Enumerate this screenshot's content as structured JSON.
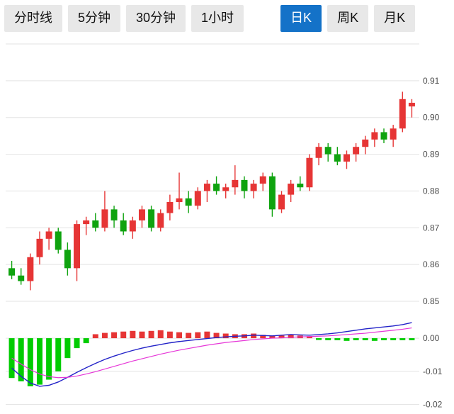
{
  "tabs": [
    {
      "name": "tab-time-line",
      "label": "分时线",
      "active": false
    },
    {
      "name": "tab-5min",
      "label": "5分钟",
      "active": false
    },
    {
      "name": "tab-30min",
      "label": "30分钟",
      "active": false
    },
    {
      "name": "tab-1hour",
      "label": "1小时",
      "active": false
    },
    {
      "name": "tab-daily-k",
      "label": "日K",
      "active": true
    },
    {
      "name": "tab-weekly-k",
      "label": "周K",
      "active": false
    },
    {
      "name": "tab-monthly-k",
      "label": "月K",
      "active": false
    }
  ],
  "colors": {
    "active_tab_bg": "#1472c8",
    "active_tab_text": "#ffffff",
    "tab_bg": "#e8e8e8",
    "tab_text": "#111111",
    "up": "#e63535",
    "down": "#0fa30f",
    "hist_up": "#e63535",
    "hist_down": "#00cc00",
    "dif_line": "#2323c8",
    "dea_line": "#e637d8",
    "grid": "#e3e3e3",
    "axis_text": "#4d4d4d"
  },
  "chart_data": [
    {
      "type": "candlestick",
      "title": "",
      "xlabel": "",
      "ylabel": "",
      "legend": false,
      "grid": true,
      "ylim": [
        0.85,
        0.92
      ],
      "grid_values": [
        0.92,
        0.91,
        0.9,
        0.89,
        0.88,
        0.87,
        0.86,
        0.85
      ],
      "y_ticks": [
        {
          "value": 0.91,
          "label": "0.91"
        },
        {
          "value": 0.9,
          "label": "0.90"
        },
        {
          "value": 0.89,
          "label": "0.89"
        },
        {
          "value": 0.88,
          "label": "0.88"
        },
        {
          "value": 0.87,
          "label": "0.87"
        },
        {
          "value": 0.86,
          "label": "0.86"
        },
        {
          "value": 0.85,
          "label": "0.85"
        }
      ],
      "candle_format": [
        "open",
        "high",
        "low",
        "close"
      ],
      "candles": [
        [
          0.859,
          0.861,
          0.856,
          0.857
        ],
        [
          0.857,
          0.859,
          0.8545,
          0.8555
        ],
        [
          0.8555,
          0.863,
          0.853,
          0.862
        ],
        [
          0.862,
          0.869,
          0.86,
          0.867
        ],
        [
          0.867,
          0.87,
          0.864,
          0.869
        ],
        [
          0.869,
          0.87,
          0.863,
          0.864
        ],
        [
          0.864,
          0.866,
          0.857,
          0.859
        ],
        [
          0.859,
          0.872,
          0.8555,
          0.871
        ],
        [
          0.871,
          0.873,
          0.868,
          0.872
        ],
        [
          0.872,
          0.874,
          0.869,
          0.87
        ],
        [
          0.87,
          0.88,
          0.869,
          0.875
        ],
        [
          0.875,
          0.876,
          0.87,
          0.872
        ],
        [
          0.872,
          0.874,
          0.868,
          0.869
        ],
        [
          0.869,
          0.873,
          0.867,
          0.872
        ],
        [
          0.872,
          0.876,
          0.87,
          0.875
        ],
        [
          0.875,
          0.876,
          0.869,
          0.87
        ],
        [
          0.87,
          0.875,
          0.869,
          0.874
        ],
        [
          0.874,
          0.879,
          0.872,
          0.877
        ],
        [
          0.877,
          0.885,
          0.875,
          0.878
        ],
        [
          0.878,
          0.88,
          0.874,
          0.876
        ],
        [
          0.876,
          0.881,
          0.875,
          0.88
        ],
        [
          0.88,
          0.883,
          0.877,
          0.882
        ],
        [
          0.882,
          0.884,
          0.879,
          0.88
        ],
        [
          0.88,
          0.882,
          0.878,
          0.881
        ],
        [
          0.881,
          0.887,
          0.879,
          0.883
        ],
        [
          0.883,
          0.884,
          0.878,
          0.88
        ],
        [
          0.88,
          0.883,
          0.878,
          0.882
        ],
        [
          0.882,
          0.885,
          0.88,
          0.884
        ],
        [
          0.884,
          0.885,
          0.873,
          0.875
        ],
        [
          0.875,
          0.88,
          0.874,
          0.879
        ],
        [
          0.879,
          0.883,
          0.877,
          0.882
        ],
        [
          0.882,
          0.884,
          0.88,
          0.881
        ],
        [
          0.881,
          0.89,
          0.88,
          0.889
        ],
        [
          0.889,
          0.893,
          0.887,
          0.892
        ],
        [
          0.892,
          0.893,
          0.888,
          0.89
        ],
        [
          0.89,
          0.892,
          0.887,
          0.888
        ],
        [
          0.888,
          0.891,
          0.886,
          0.89
        ],
        [
          0.89,
          0.893,
          0.888,
          0.892
        ],
        [
          0.892,
          0.895,
          0.89,
          0.894
        ],
        [
          0.894,
          0.897,
          0.892,
          0.896
        ],
        [
          0.896,
          0.897,
          0.893,
          0.894
        ],
        [
          0.894,
          0.898,
          0.892,
          0.897
        ],
        [
          0.897,
          0.907,
          0.896,
          0.905
        ],
        [
          0.903,
          0.905,
          0.9,
          0.904
        ]
      ]
    },
    {
      "type": "macd",
      "title": "",
      "legend": false,
      "grid": true,
      "ylim": [
        -0.022,
        0.006
      ],
      "grid_values": [
        0.0,
        -0.01,
        -0.02
      ],
      "y_ticks": [
        {
          "value": 0.0,
          "label": "0.00"
        },
        {
          "value": -0.01,
          "label": "-0.01"
        },
        {
          "value": -0.02,
          "label": "-0.02"
        }
      ],
      "histogram": [
        -0.012,
        -0.013,
        -0.0145,
        -0.014,
        -0.0125,
        -0.01,
        -0.006,
        -0.003,
        -0.0015,
        0.0012,
        0.0016,
        0.0018,
        0.002,
        0.0022,
        0.002,
        0.0022,
        0.0024,
        0.002,
        0.0018,
        0.0016,
        0.0018,
        0.002,
        0.0016,
        0.0014,
        0.0012,
        0.0012,
        0.0014,
        0.001,
        0.0008,
        0.0008,
        0.001,
        0.0008,
        0.0006,
        -0.0004,
        -0.0006,
        -0.0006,
        -0.0008,
        -0.0006,
        -0.0006,
        -0.0008,
        -0.0006,
        -0.0006,
        -0.0006,
        -0.0006
      ],
      "dif": [
        -0.009,
        -0.0115,
        -0.0135,
        -0.0145,
        -0.0142,
        -0.0132,
        -0.0118,
        -0.0103,
        -0.0089,
        -0.0076,
        -0.0064,
        -0.0054,
        -0.0045,
        -0.0037,
        -0.003,
        -0.0024,
        -0.0019,
        -0.0014,
        -0.001,
        -0.0007,
        -0.0004,
        -0.0001,
        0.0002,
        0.0004,
        0.0006,
        0.0007,
        0.0009,
        0.0008,
        0.0007,
        0.0009,
        0.0011,
        0.001,
        0.0009,
        0.0011,
        0.0013,
        0.0016,
        0.002,
        0.0024,
        0.0028,
        0.0031,
        0.0034,
        0.0037,
        0.0041,
        0.0047
      ],
      "dea": [
        -0.006,
        -0.0078,
        -0.0095,
        -0.0108,
        -0.0116,
        -0.0119,
        -0.0118,
        -0.0114,
        -0.0108,
        -0.0101,
        -0.0093,
        -0.0085,
        -0.0077,
        -0.0069,
        -0.0062,
        -0.0055,
        -0.0048,
        -0.0042,
        -0.0036,
        -0.0031,
        -0.0026,
        -0.0021,
        -0.0017,
        -0.0013,
        -0.001,
        -0.0007,
        -0.0004,
        -0.0002,
        0.0,
        0.0001,
        0.0003,
        0.0004,
        0.0005,
        0.0006,
        0.0007,
        0.0009,
        0.0011,
        0.0013,
        0.0015,
        0.0018,
        0.0021,
        0.0024,
        0.0027,
        0.0031
      ]
    }
  ]
}
